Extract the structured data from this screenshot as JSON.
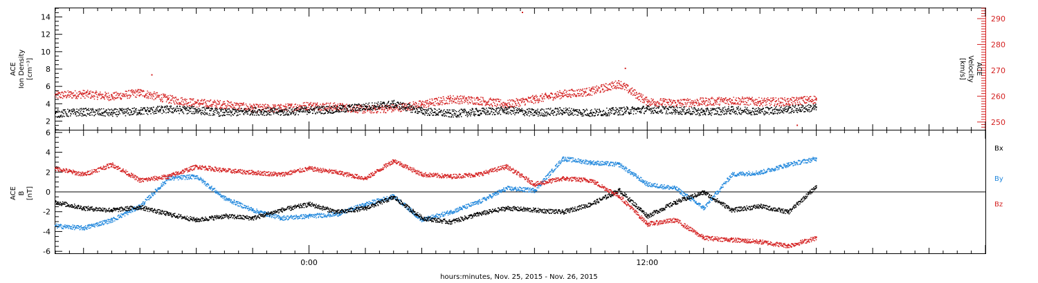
{
  "chart_data": [
    {
      "type": "scatter",
      "name": "ion-density-velocity",
      "left_axis": {
        "label_lines": [
          "ACE",
          "Ion Density",
          "[cm⁻³]"
        ],
        "ylim": [
          1,
          15
        ],
        "ticks": [
          2,
          4,
          6,
          8,
          10,
          12,
          14
        ],
        "color": "#000000"
      },
      "right_axis": {
        "label_lines": [
          "ACE",
          "Velocity",
          "[km/s]"
        ],
        "ylim": [
          247,
          294
        ],
        "ticks": [
          250,
          260,
          270,
          280,
          290
        ],
        "color": "#d42020"
      },
      "series": [
        {
          "axis": "left",
          "color": "#000000",
          "x": [
            -9,
            -8,
            -7,
            -6,
            -5,
            -4,
            -3,
            -2,
            -1,
            0,
            1,
            2,
            3,
            4,
            5,
            6,
            7,
            8,
            9,
            10,
            11,
            12,
            13,
            14,
            15,
            16,
            17,
            18
          ],
          "values": [
            2.9,
            3.1,
            3.0,
            3.2,
            3.4,
            3.3,
            3.0,
            3.2,
            3.1,
            3.3,
            3.4,
            3.7,
            4.0,
            3.2,
            2.9,
            3.1,
            3.3,
            3.0,
            3.2,
            3.0,
            3.2,
            3.4,
            3.3,
            3.1,
            3.3,
            3.2,
            3.4,
            3.6
          ]
        },
        {
          "axis": "right",
          "color": "#d42020",
          "x": [
            -9,
            -8,
            -7,
            -6,
            -5,
            -4,
            -3,
            -2,
            -1,
            0,
            1,
            2,
            3,
            4,
            5,
            6,
            7,
            8,
            9,
            10,
            11,
            12,
            13,
            14,
            15,
            16,
            17,
            18
          ],
          "values": [
            260.5,
            261.0,
            260.0,
            261.5,
            259.0,
            257.5,
            257.0,
            255.5,
            255.5,
            256.5,
            256.0,
            255.0,
            255.5,
            257.0,
            259.0,
            258.5,
            257.0,
            259.0,
            261.0,
            262.0,
            265.0,
            258.0,
            257.5,
            258.0,
            258.5,
            258.0,
            258.0,
            259.0
          ]
        }
      ],
      "outliers": [
        {
          "axis": "left",
          "x": 7.55,
          "y": 14.6,
          "color": "#d42020"
        },
        {
          "axis": "right",
          "x": -5.6,
          "y": 268.5,
          "color": "#d42020"
        },
        {
          "axis": "right",
          "x": 11.2,
          "y": 271.0,
          "color": "#d42020"
        },
        {
          "axis": "right",
          "x": 17.3,
          "y": 249.0,
          "color": "#d42020"
        }
      ]
    },
    {
      "type": "scatter",
      "name": "magnetic-field",
      "y_axis": {
        "label_lines": [
          "ACE",
          "B",
          "[nT]"
        ],
        "ylim": [
          -6.2,
          6.2
        ],
        "ticks": [
          -6,
          -4,
          -2,
          0,
          2,
          4,
          6
        ]
      },
      "zero_line": true,
      "series": [
        {
          "name": "Bx",
          "color": "#000000",
          "x": [
            -9,
            -8,
            -7,
            -6,
            -5,
            -4,
            -3,
            -2,
            -1,
            0,
            1,
            2,
            3,
            4,
            5,
            6,
            7,
            8,
            9,
            10,
            11,
            12,
            13,
            14,
            15,
            16,
            17,
            18
          ],
          "values": [
            -1.0,
            -1.6,
            -1.8,
            -1.5,
            -2.2,
            -2.8,
            -2.4,
            -2.6,
            -1.8,
            -1.2,
            -2.0,
            -1.6,
            -0.5,
            -2.6,
            -3.0,
            -2.2,
            -1.6,
            -1.8,
            -2.0,
            -1.2,
            0.2,
            -2.4,
            -1.0,
            0.0,
            -1.8,
            -1.4,
            -2.0,
            0.6
          ]
        },
        {
          "name": "By",
          "color": "#2288dd",
          "x": [
            -9,
            -8,
            -7,
            -6,
            -5,
            -4,
            -3,
            -2,
            -1,
            0,
            1,
            2,
            3,
            4,
            5,
            6,
            7,
            8,
            9,
            10,
            11,
            12,
            13,
            14,
            15,
            16,
            17,
            18
          ],
          "values": [
            -3.4,
            -3.6,
            -2.8,
            -1.4,
            1.4,
            1.6,
            -0.6,
            -1.8,
            -2.6,
            -2.4,
            -2.2,
            -1.2,
            -0.4,
            -2.8,
            -2.0,
            -1.0,
            0.4,
            0.2,
            3.4,
            3.0,
            2.8,
            0.8,
            0.4,
            -1.6,
            1.8,
            2.0,
            2.8,
            3.4
          ]
        },
        {
          "name": "Bz",
          "color": "#d42020",
          "x": [
            -9,
            -8,
            -7,
            -6,
            -5,
            -4,
            -3,
            -2,
            -1,
            0,
            1,
            2,
            3,
            4,
            5,
            6,
            7,
            8,
            9,
            10,
            11,
            12,
            13,
            14,
            15,
            16,
            17,
            18
          ],
          "values": [
            2.4,
            1.8,
            2.8,
            1.2,
            1.6,
            2.6,
            2.2,
            2.0,
            1.8,
            2.4,
            2.0,
            1.4,
            3.2,
            1.8,
            1.6,
            1.8,
            2.6,
            0.8,
            1.4,
            1.2,
            -0.4,
            -3.2,
            -2.8,
            -4.6,
            -4.8,
            -5.0,
            -5.4,
            -4.6
          ]
        }
      ],
      "legend": [
        "Bx",
        "By",
        "Bz"
      ]
    }
  ],
  "x_axis": {
    "xlim": [
      -9,
      24
    ],
    "major_ticks": [
      0,
      12
    ],
    "major_tick_labels": [
      "0:00",
      "12:00"
    ],
    "label": "hours:minutes, Nov. 25, 2015 - Nov. 26, 2015"
  }
}
